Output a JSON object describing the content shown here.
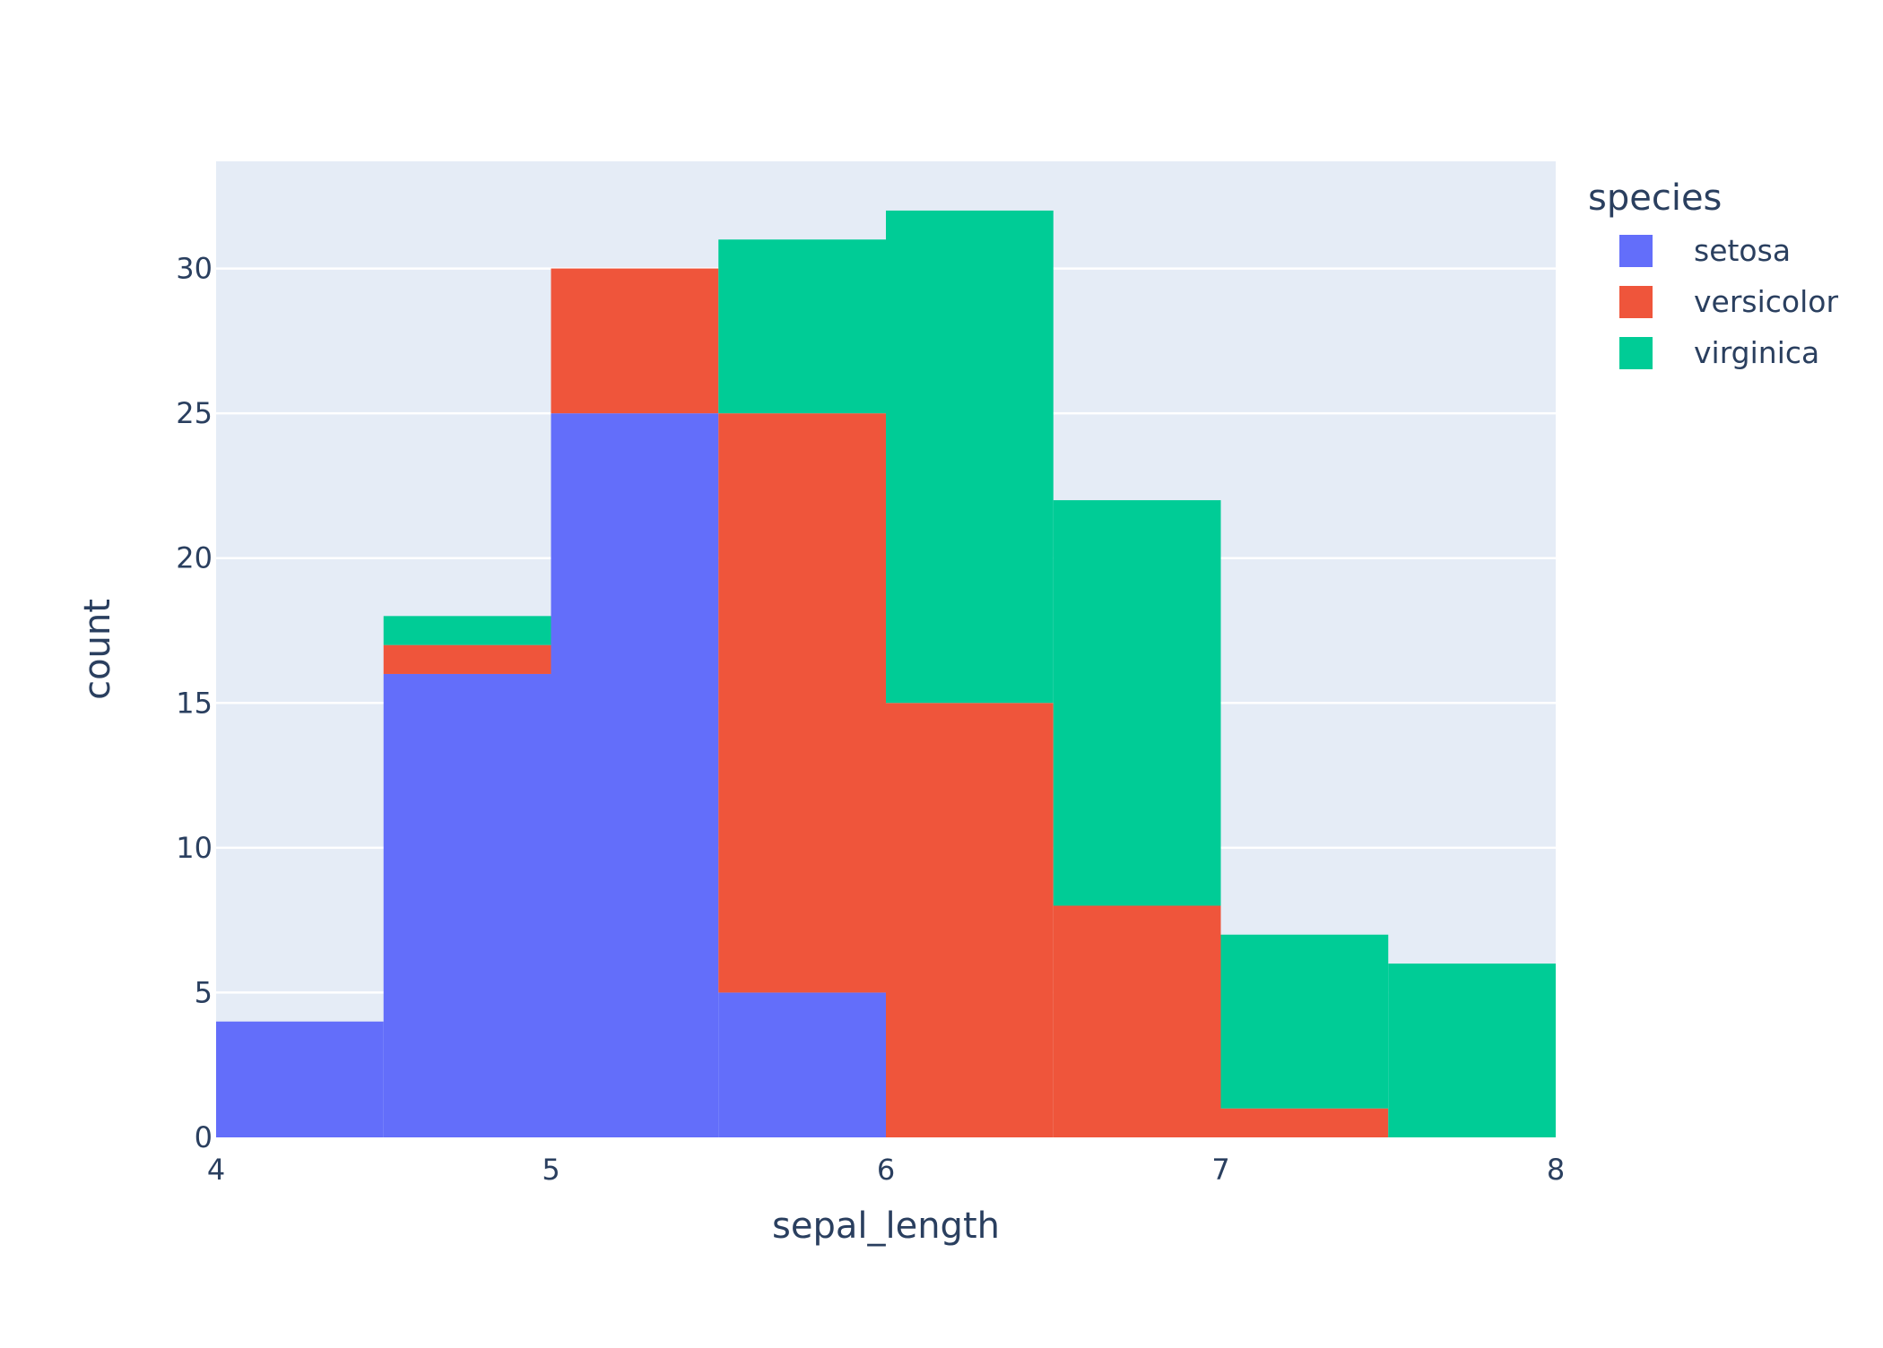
{
  "chart_data": {
    "type": "bar",
    "stacked": true,
    "bin_edges": [
      4,
      4.5,
      5,
      5.5,
      6,
      6.5,
      7,
      7.5,
      8
    ],
    "series": [
      {
        "name": "setosa",
        "color": "#636efa",
        "values": [
          4,
          16,
          25,
          5,
          0,
          0,
          0,
          0
        ]
      },
      {
        "name": "versicolor",
        "color": "#ef553b",
        "values": [
          0,
          1,
          5,
          20,
          15,
          8,
          1,
          0
        ]
      },
      {
        "name": "virginica",
        "color": "#00cc96",
        "values": [
          0,
          1,
          0,
          6,
          17,
          14,
          6,
          6
        ]
      }
    ],
    "xlabel": "sepal_length",
    "ylabel": "count",
    "xlim": [
      4,
      8
    ],
    "ylim": [
      0,
      33.7
    ],
    "x_ticks": [
      "4",
      "5",
      "6",
      "7",
      "8"
    ],
    "y_ticks": [
      "0",
      "5",
      "10",
      "15",
      "20",
      "25",
      "30"
    ],
    "grid": true,
    "legend_title": "species",
    "legend_position": "top-right",
    "plot_background": "#e5ecf6"
  }
}
